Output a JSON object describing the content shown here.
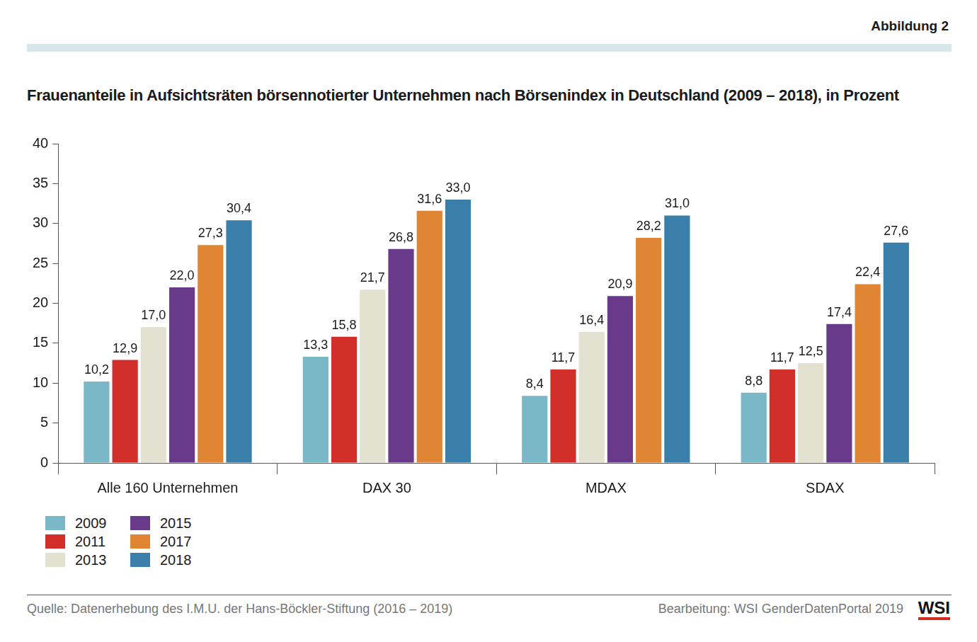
{
  "chart_data": {
    "type": "bar",
    "title": "Frauenanteile in Aufsichtsräten börsennotierter Unternehmen nach Börsenindex in Deutschland (2009 – 2018), in Prozent",
    "annotations": [
      "Abbildung 2",
      "Quelle: Datenerhebung des I.M.U. der Hans-Böckler-Stiftung (2016 – 2019)",
      "Bearbeitung: WSI GenderDatenPortal 2019",
      "WSI"
    ],
    "categories": [
      "Alle 160 Unternehmen",
      "DAX 30",
      "MDAX",
      "SDAX"
    ],
    "series": [
      {
        "name": "2009",
        "color": "#7ab8c8",
        "values": [
          10.2,
          13.3,
          8.4,
          8.8
        ],
        "value_labels": [
          "10,2",
          "13,3",
          "8,4",
          "8,8"
        ]
      },
      {
        "name": "2011",
        "color": "#d22f2a",
        "values": [
          12.9,
          15.8,
          11.7,
          11.7
        ],
        "value_labels": [
          "12,9",
          "15,8",
          "11,7",
          "11,7"
        ]
      },
      {
        "name": "2013",
        "color": "#e3e1d0",
        "values": [
          17.0,
          21.7,
          16.4,
          12.5
        ],
        "value_labels": [
          "17,0",
          "21,7",
          "16,4",
          "12,5"
        ]
      },
      {
        "name": "2015",
        "color": "#693a8a",
        "values": [
          22.0,
          26.8,
          20.9,
          17.4
        ],
        "value_labels": [
          "22,0",
          "26,8",
          "20,9",
          "17,4"
        ]
      },
      {
        "name": "2017",
        "color": "#e08533",
        "values": [
          27.3,
          31.6,
          28.2,
          22.4
        ],
        "value_labels": [
          "27,3",
          "31,6",
          "28,2",
          "22,4"
        ]
      },
      {
        "name": "2018",
        "color": "#3a7faa",
        "values": [
          30.4,
          33.0,
          31.0,
          27.6
        ],
        "value_labels": [
          "30,4",
          "33,0",
          "31,0",
          "27,6"
        ]
      }
    ],
    "ylim": [
      0,
      40
    ],
    "yticks": [
      0,
      5,
      10,
      15,
      20,
      25,
      30,
      35,
      40
    ],
    "grid": false,
    "legend": "bottom-left",
    "data_labels": true
  }
}
